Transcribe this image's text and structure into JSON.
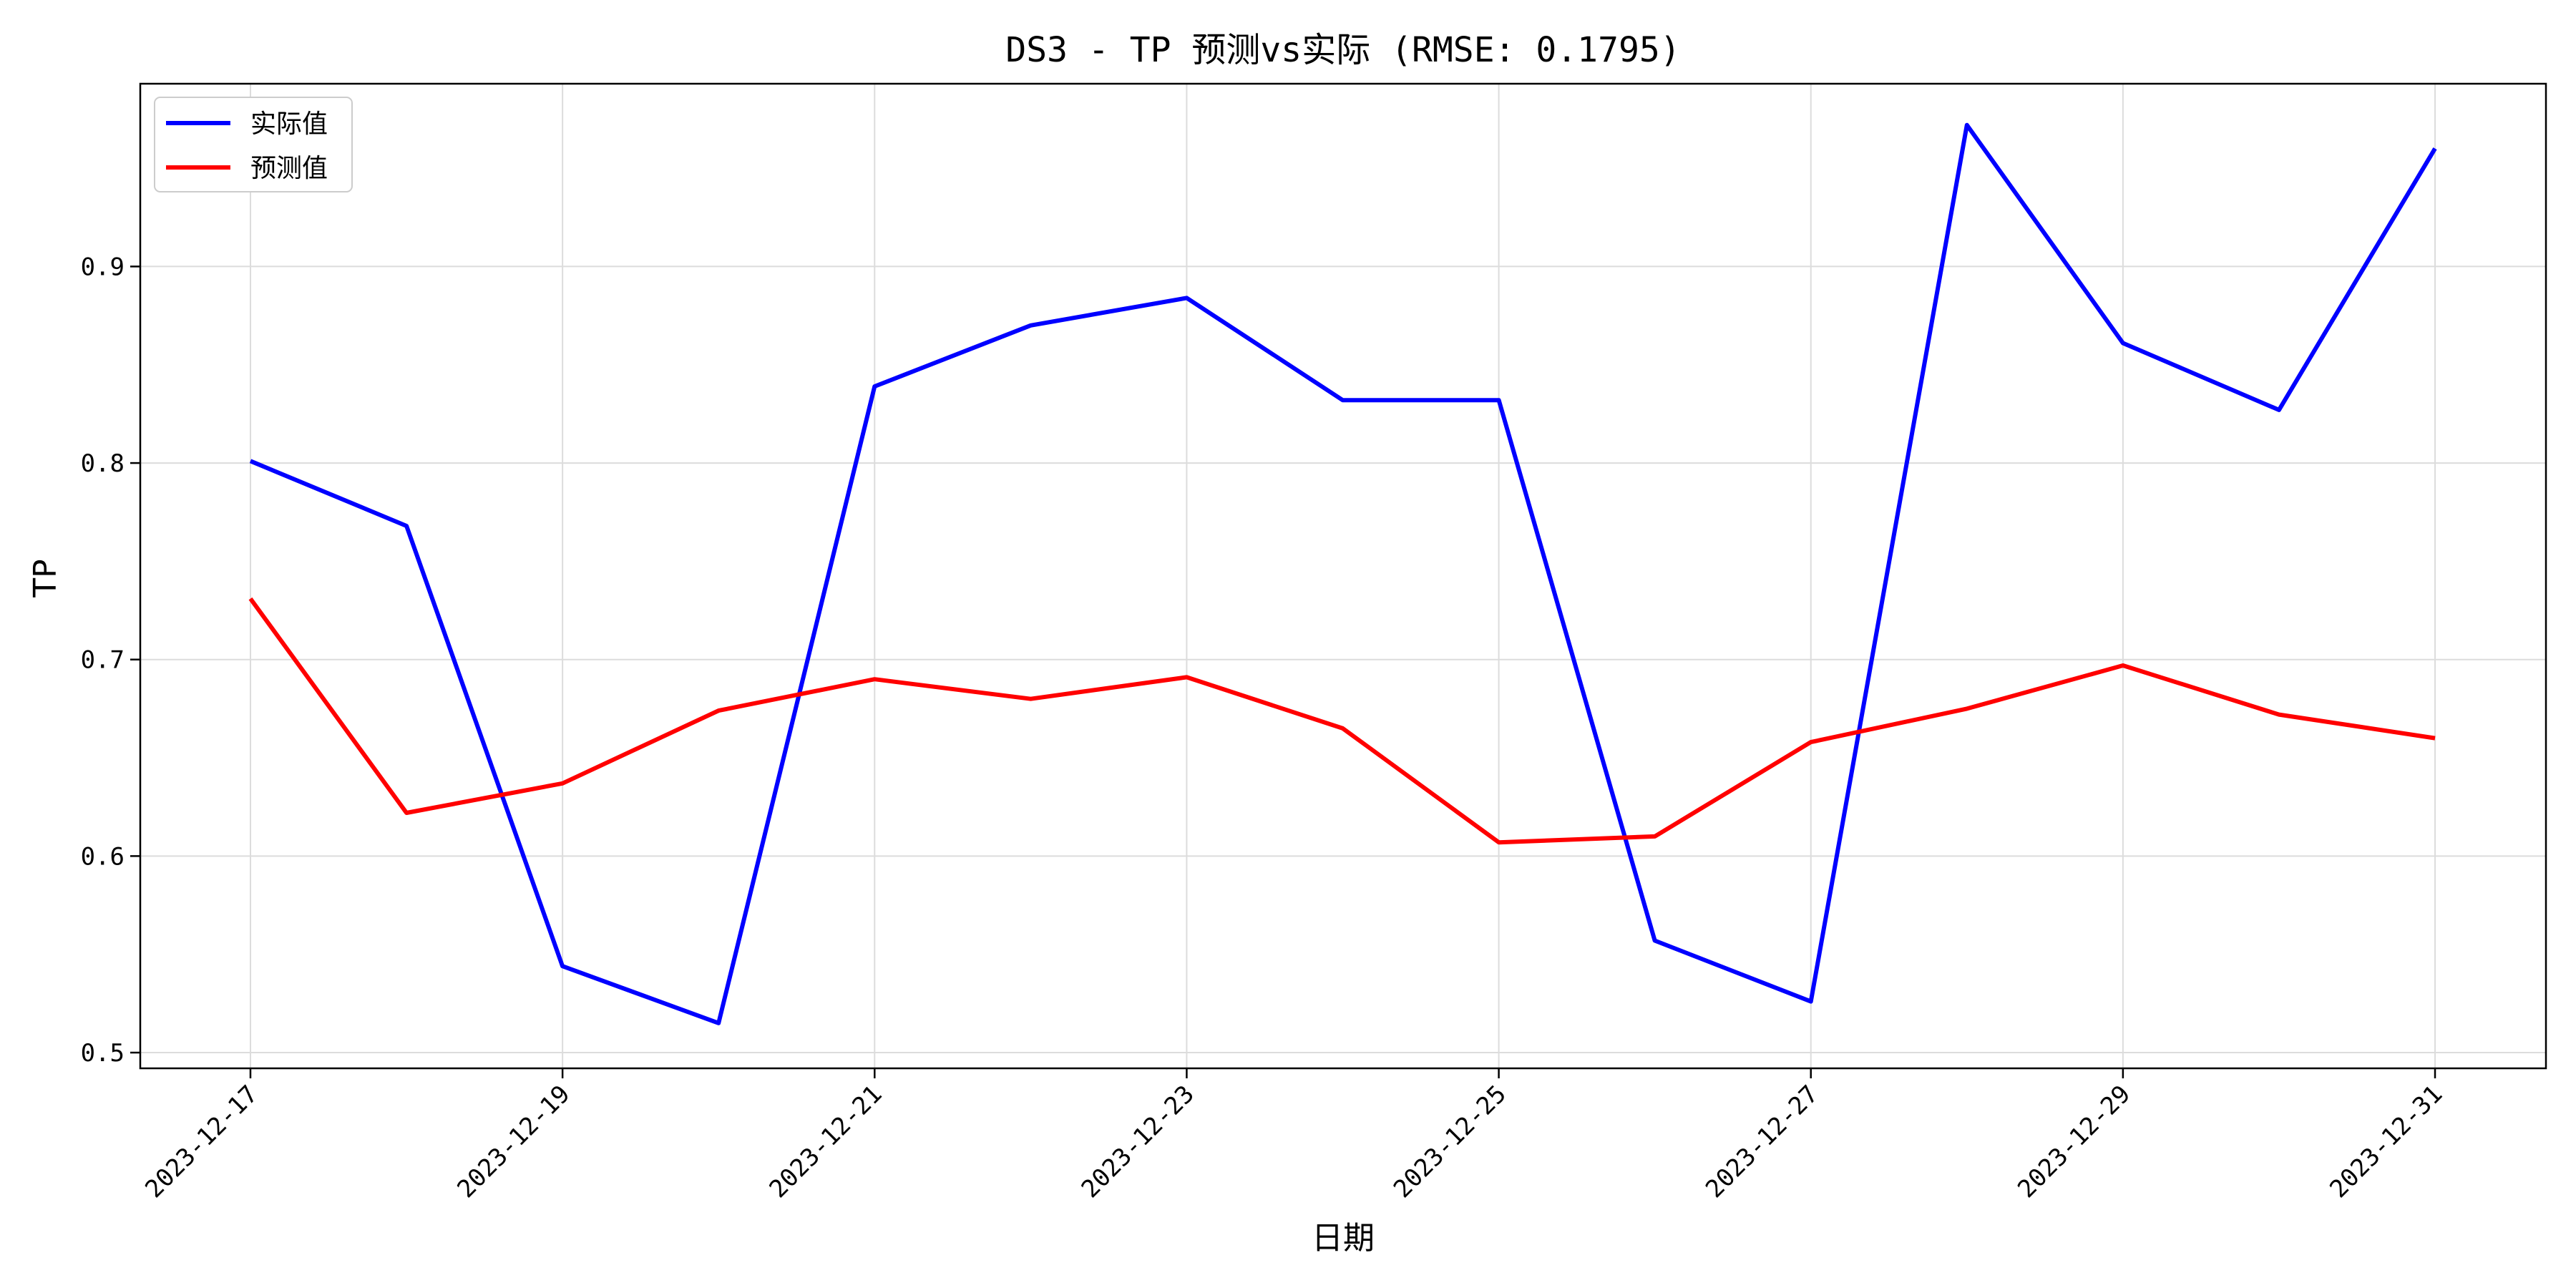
{
  "chart_data": {
    "type": "line",
    "title": "DS3 - TP 预测vs实际 (RMSE: 0.1795)",
    "xlabel": "日期",
    "ylabel": "TP",
    "x": [
      "2023-12-17",
      "2023-12-18",
      "2023-12-19",
      "2023-12-20",
      "2023-12-21",
      "2023-12-22",
      "2023-12-23",
      "2023-12-24",
      "2023-12-25",
      "2023-12-26",
      "2023-12-27",
      "2023-12-28",
      "2023-12-29",
      "2023-12-30",
      "2023-12-31"
    ],
    "xticks": [
      "2023-12-17",
      "2023-12-19",
      "2023-12-21",
      "2023-12-23",
      "2023-12-25",
      "2023-12-27",
      "2023-12-29",
      "2023-12-31"
    ],
    "yticks": [
      "0.5",
      "0.6",
      "0.7",
      "0.8",
      "0.9"
    ],
    "ylim": [
      0.492,
      0.993
    ],
    "grid": true,
    "legend_position": "top-left",
    "series": [
      {
        "name": "实际值",
        "color": "#0000ff",
        "values": [
          0.801,
          0.768,
          0.544,
          0.515,
          0.839,
          0.87,
          0.884,
          0.832,
          0.832,
          0.557,
          0.526,
          0.972,
          0.861,
          0.827,
          0.96
        ]
      },
      {
        "name": "预测值",
        "color": "#ff0000",
        "values": [
          0.731,
          0.622,
          0.637,
          0.674,
          0.69,
          0.68,
          0.691,
          0.665,
          0.607,
          0.61,
          0.658,
          0.675,
          0.697,
          0.672,
          0.66
        ]
      }
    ]
  }
}
